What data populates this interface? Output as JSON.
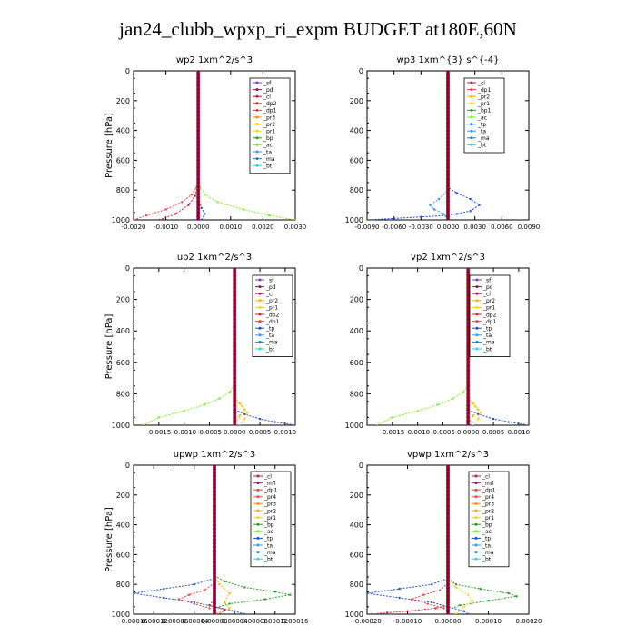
{
  "page": {
    "title": "jan24_clubb_wpxp_ri_expm  BUDGET at180E,60N"
  },
  "colors": {
    "sf": "#7d3fc8",
    "pd": "#8b1a4a",
    "cl": "#c21d3a",
    "dp2": "#e8232b",
    "dp1": "#f04040",
    "dp4": "#e8232b",
    "pr1": "#ffd21a",
    "pr2": "#ffb000",
    "pr3": "#ff8c1a",
    "pr4": "#e35050",
    "bp": "#2aa02a",
    "ac": "#7cf02a",
    "tp": "#1f4fd6",
    "ta": "#3399ff",
    "ma": "#2f7fbf",
    "bt": "#22d8e8",
    "mfl": "#a01a6e",
    "trunk": "#a00000"
  },
  "chart_data": [
    {
      "type": "line",
      "title": "wp2   1xm^2/s^3",
      "ylabel": "Pressure [hPa]",
      "xlim": [
        -0.002,
        0.003
      ],
      "ylim": [
        1000,
        0
      ],
      "xticks": [
        -0.002,
        -0.001,
        0.0,
        0.001,
        0.002,
        0.003
      ],
      "xtick_labels": [
        "-0.0020",
        "-0.0010",
        "0.0000",
        "0.0010",
        "0.0020",
        "0.0030"
      ],
      "yticks": [
        0,
        200,
        400,
        600,
        800,
        1000
      ],
      "legend": [
        "_sf",
        "_pd",
        "_cl",
        "_dp2",
        "_dp1",
        "_pr3",
        "_pr2",
        "_pr1",
        "_bp",
        "_ac",
        "_ta",
        "_ma",
        "_bt"
      ],
      "legend_keys": [
        "sf",
        "pd",
        "cl",
        "dp2",
        "dp1",
        "pr3",
        "pr2",
        "pr1",
        "bp",
        "ac",
        "ta",
        "ma",
        "bt"
      ],
      "series": [
        {
          "key": "ac",
          "x": [
            0.0,
            0.0,
            5e-05,
            0.0002,
            0.0006,
            0.0014,
            0.0022,
            0.003
          ],
          "y": [
            0,
            700,
            780,
            830,
            880,
            930,
            970,
            1000
          ]
        },
        {
          "key": "dp1",
          "x": [
            0.0,
            0.0,
            -5e-05,
            -0.0002,
            -0.0005,
            -0.001,
            -0.0016,
            -0.002
          ],
          "y": [
            0,
            700,
            780,
            830,
            880,
            930,
            970,
            1000
          ]
        },
        {
          "key": "cl",
          "x": [
            0.0,
            0.0,
            -0.0001,
            -0.0003,
            -0.0007,
            -0.0012
          ],
          "y": [
            0,
            760,
            840,
            900,
            960,
            1000
          ]
        },
        {
          "key": "tp",
          "x": [
            0.0,
            0.0,
            0.0001,
            0.0002,
            0.0001
          ],
          "y": [
            0,
            850,
            920,
            960,
            1000
          ]
        }
      ]
    },
    {
      "type": "line",
      "title": "wp3   1xm^{3} s^{-4}",
      "ylabel": "",
      "xlim": [
        -0.009,
        0.009
      ],
      "ylim": [
        1000,
        0
      ],
      "xticks": [
        -0.009,
        -0.006,
        -0.003,
        0.0,
        0.003,
        0.006,
        0.009
      ],
      "xtick_labels": [
        "-0.0090",
        "-0.0060",
        "-0.0030",
        "0.0000",
        "0.0030",
        "0.0060",
        "0.0090"
      ],
      "yticks": [
        0,
        200,
        400,
        600,
        800,
        1000
      ],
      "legend": [
        "_cl",
        "_dp1",
        "_pr2",
        "_pr1",
        "_bp1",
        "_ac",
        "_tp",
        "_ta",
        "_ma",
        "_bt"
      ],
      "legend_keys": [
        "cl",
        "dp1",
        "pr2",
        "pr1",
        "bp",
        "ac",
        "tp",
        "ta",
        "ma",
        "bt"
      ],
      "series": [
        {
          "key": "tp",
          "x": [
            0.0,
            0.0,
            0.001,
            0.0025,
            0.0035,
            0.0025,
            0.001,
            0.0,
            -0.003,
            -0.006,
            -0.009
          ],
          "y": [
            0,
            780,
            820,
            860,
            900,
            940,
            960,
            970,
            980,
            990,
            1000
          ]
        },
        {
          "key": "ta",
          "x": [
            0.0,
            0.0,
            -0.001,
            -0.002,
            -0.0015,
            -0.0005,
            0.0
          ],
          "y": [
            0,
            800,
            860,
            900,
            930,
            960,
            1000
          ]
        }
      ]
    },
    {
      "type": "line",
      "title": "up2   1xm^2/s^3",
      "ylabel": "Pressure [hPa]",
      "xlim": [
        -0.002,
        0.0012
      ],
      "ylim": [
        1000,
        0
      ],
      "xticks": [
        -0.0015,
        -0.001,
        -0.0005,
        0.0,
        0.0005,
        0.001
      ],
      "xtick_labels": [
        "-0.0015",
        "-0.0010",
        "-0.0005",
        "0.0000",
        "0.0005",
        "0.0010"
      ],
      "yticks": [
        0,
        200,
        400,
        600,
        800,
        1000
      ],
      "legend": [
        "_sf",
        "_pd",
        "_cl",
        "_pr2",
        "_pr1",
        "_dp2",
        "_dp1",
        "_tp",
        "_ta",
        "_ma",
        "_bt"
      ],
      "legend_keys": [
        "sf",
        "pd",
        "cl",
        "pr2",
        "pr1",
        "dp2",
        "dp1",
        "tp",
        "ta",
        "ma",
        "bt"
      ],
      "series": [
        {
          "key": "ac",
          "x": [
            0.0,
            -0.0001,
            -0.0003,
            -0.0006,
            -0.001,
            -0.0015,
            -0.0018
          ],
          "y": [
            740,
            790,
            830,
            870,
            910,
            950,
            1000
          ]
        },
        {
          "key": "pr2",
          "x": [
            0.0,
            0.0001,
            0.0002,
            0.0001,
            0.0
          ],
          "y": [
            820,
            860,
            900,
            940,
            1000
          ]
        },
        {
          "key": "tp",
          "x": [
            0.0,
            0.0002,
            0.0005,
            0.0008,
            0.0012
          ],
          "y": [
            900,
            930,
            960,
            980,
            1000
          ]
        },
        {
          "key": "pr1",
          "x": [
            0.0,
            0.00015,
            0.00025,
            0.0002,
            0.0001
          ],
          "y": [
            840,
            880,
            920,
            960,
            1000
          ]
        }
      ]
    },
    {
      "type": "line",
      "title": "vp2   1xm^2/s^3",
      "ylabel": "",
      "xlim": [
        -0.002,
        0.0012
      ],
      "ylim": [
        1000,
        0
      ],
      "xticks": [
        -0.0015,
        -0.001,
        -0.0005,
        0.0,
        0.0005,
        0.001
      ],
      "xtick_labels": [
        "-0.0015",
        "-0.0010",
        "-0.0005",
        "0.0000",
        "0.0005",
        "0.0010"
      ],
      "yticks": [
        0,
        200,
        400,
        600,
        800,
        1000
      ],
      "legend": [
        "_sf",
        "_pd",
        "_cl",
        "_pr2",
        "_pr1",
        "_dp2",
        "_dp1",
        "_tp",
        "_ta",
        "_ma",
        "_bt"
      ],
      "legend_keys": [
        "sf",
        "pd",
        "cl",
        "pr2",
        "pr1",
        "dp2",
        "dp1",
        "tp",
        "ta",
        "ma",
        "bt"
      ],
      "series": [
        {
          "key": "ac",
          "x": [
            0.0,
            -0.0001,
            -0.0003,
            -0.0006,
            -0.001,
            -0.0015,
            -0.0018
          ],
          "y": [
            740,
            790,
            830,
            870,
            910,
            950,
            1000
          ]
        },
        {
          "key": "pr2",
          "x": [
            0.0,
            0.0001,
            0.0002,
            0.0001,
            0.0
          ],
          "y": [
            820,
            860,
            900,
            940,
            1000
          ]
        },
        {
          "key": "tp",
          "x": [
            0.0,
            0.0002,
            0.0005,
            0.0008,
            0.0012
          ],
          "y": [
            900,
            930,
            960,
            980,
            1000
          ]
        },
        {
          "key": "pr1",
          "x": [
            0.0,
            0.00015,
            0.00025,
            0.0002,
            0.0001
          ],
          "y": [
            840,
            880,
            920,
            960,
            1000
          ]
        }
      ]
    },
    {
      "type": "line",
      "title": "upwp   1xm^2/s^3",
      "ylabel": "Pressure [hPa]",
      "xlim": [
        -0.00016,
        0.00016
      ],
      "ylim": [
        1000,
        0
      ],
      "xticks": [
        -0.00016,
        -0.00012,
        -8e-05,
        -4e-05,
        0.0,
        4e-05,
        8e-05,
        0.00012,
        0.00016
      ],
      "xtick_labels": [
        "-0.00016",
        "-0.00012",
        "-0.00008",
        "-0.00004",
        "0.00000",
        "0.00004",
        "0.00008",
        "0.00012",
        "0.00016"
      ],
      "yticks": [
        0,
        200,
        400,
        600,
        800,
        1000
      ],
      "legend": [
        "_cl",
        "_mfl",
        "_dp1",
        "_pr4",
        "_pr3",
        "_pr2",
        "_pr1",
        "_bp",
        "_ac",
        "_tp",
        "_ta",
        "_ma",
        "_bt"
      ],
      "legend_keys": [
        "cl",
        "mfl",
        "dp1",
        "pr4",
        "pr3",
        "pr2",
        "pr1",
        "bp",
        "ac",
        "tp",
        "ta",
        "ma",
        "bt"
      ],
      "series": [
        {
          "key": "bp",
          "x": [
            0.0,
            2e-05,
            6e-05,
            0.00012,
            0.00015,
            0.0001,
            3e-05,
            0.0
          ],
          "y": [
            740,
            780,
            820,
            850,
            870,
            900,
            930,
            960
          ]
        },
        {
          "key": "tp",
          "x": [
            0.0,
            -4e-05,
            -0.0001,
            -0.00016,
            -0.0001,
            -4e-05,
            0.0,
            4e-05,
            6e-05
          ],
          "y": [
            760,
            800,
            830,
            860,
            890,
            920,
            950,
            980,
            1000
          ]
        },
        {
          "key": "dp1",
          "x": [
            0.0,
            -2e-05,
            -5e-05,
            -7e-05,
            -4e-05,
            -1e-05
          ],
          "y": [
            790,
            840,
            870,
            900,
            930,
            960
          ]
        },
        {
          "key": "pr2",
          "x": [
            0.0,
            1e-05,
            3e-05,
            2e-05,
            3e-05,
            0.0
          ],
          "y": [
            740,
            800,
            860,
            920,
            960,
            1000
          ]
        },
        {
          "key": "cl",
          "x": [
            0.0,
            -1e-05,
            2e-05,
            1e-05
          ],
          "y": [
            900,
            940,
            970,
            1000
          ]
        }
      ]
    },
    {
      "type": "line",
      "title": "vpwp   1xm^2/s^3",
      "ylabel": "",
      "xlim": [
        -0.0002,
        0.0002
      ],
      "ylim": [
        1000,
        0
      ],
      "xticks": [
        -0.0002,
        -0.0001,
        0.0,
        0.0001,
        0.0002
      ],
      "xtick_labels": [
        "-0.00020",
        "-0.00010",
        "0.00000",
        "0.00010",
        "0.00020"
      ],
      "yticks": [
        0,
        200,
        400,
        600,
        800,
        1000
      ],
      "legend": [
        "_cl",
        "_mfl",
        "_dp1",
        "_pr4",
        "_pr3",
        "_pr2",
        "_pr1",
        "_bp",
        "_ac",
        "_tp",
        "_ta",
        "_ma",
        "_bt"
      ],
      "legend_keys": [
        "cl",
        "mfl",
        "dp1",
        "pr4",
        "pr3",
        "pr2",
        "pr1",
        "bp",
        "ac",
        "tp",
        "ta",
        "ma",
        "bt"
      ],
      "series": [
        {
          "key": "bp",
          "x": [
            0.0,
            2e-05,
            8e-05,
            0.00015,
            0.00017,
            0.0001,
            3e-05,
            0.0
          ],
          "y": [
            760,
            800,
            830,
            860,
            880,
            910,
            940,
            970
          ]
        },
        {
          "key": "tp",
          "x": [
            0.0,
            -4e-05,
            -0.00012,
            -0.0002,
            -0.00012,
            -4e-05,
            0.0,
            4e-05,
            5e-05
          ],
          "y": [
            760,
            800,
            830,
            860,
            890,
            920,
            950,
            980,
            1000
          ]
        },
        {
          "key": "dp1",
          "x": [
            0.0,
            -2e-05,
            -6e-05,
            -9e-05,
            -5e-05,
            -1e-05
          ],
          "y": [
            790,
            840,
            870,
            900,
            930,
            960
          ]
        },
        {
          "key": "pr1",
          "x": [
            0.0,
            2e-05,
            5e-05,
            6e-05,
            4e-05,
            2e-05
          ],
          "y": [
            760,
            820,
            870,
            910,
            950,
            1000
          ]
        },
        {
          "key": "dp2",
          "x": [
            0.0,
            -3e-05,
            -0.0001,
            -0.00015,
            -0.00019
          ],
          "y": [
            940,
            960,
            980,
            990,
            1000
          ]
        }
      ]
    }
  ]
}
